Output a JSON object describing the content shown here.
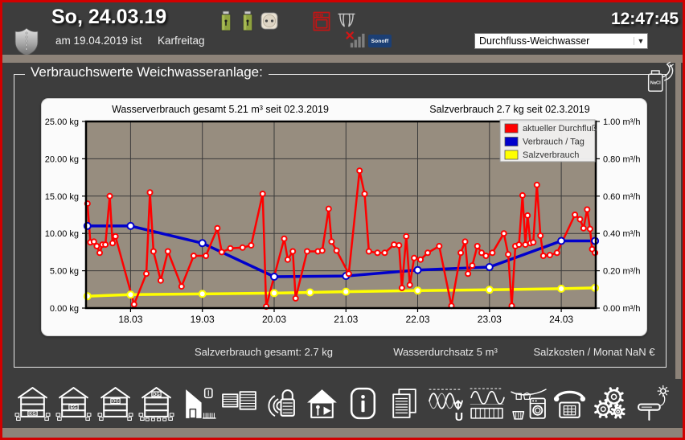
{
  "window": {
    "time": "12:47:45",
    "border_color": "#d10000",
    "panel_color": "#3d3d3d",
    "frame_color": "#8d8379"
  },
  "topbar": {
    "date": "So, 24.03.19",
    "holiday_prefix": "am 19.04.2019 ist",
    "holiday_name": "Karfreitag",
    "dropdown_value": "Durchfluss-Weichwasser",
    "sonoff_label": "Sonoff",
    "status_icons": [
      "shield-icon",
      "battery-icon",
      "battery-icon",
      "power-socket-icon",
      "oven-alarm-icon",
      "curtain-icon",
      "no-signal-icon",
      "sonoff-badge"
    ]
  },
  "groupbox": {
    "title": "Verbrauchswerte Weichwasseranlage:"
  },
  "chart_data": {
    "type": "line",
    "title_left": "Wasserverbrauch gesamt 5.21 m³  seit 02.3.2019",
    "title_right": "Salzverbrauch 2.7 kg  seit 02.3.2019",
    "plot_bg": "#978d7f",
    "grid": true,
    "legend_position": "top-right",
    "xlim": [
      17.38,
      24.48
    ],
    "x_ticks": [
      {
        "day": 18,
        "label": "18.03"
      },
      {
        "day": 19,
        "label": "19.03"
      },
      {
        "day": 20,
        "label": "20.03"
      },
      {
        "day": 21,
        "label": "21.03"
      },
      {
        "day": 22,
        "label": "22.03"
      },
      {
        "day": 23,
        "label": "23.03"
      },
      {
        "day": 24,
        "label": "24.03"
      }
    ],
    "left_axis": {
      "unit": "kg",
      "lim": [
        0,
        25
      ],
      "ticks": [
        {
          "v": 25,
          "label": "25.00 kg"
        },
        {
          "v": 20,
          "label": "20.00 kg"
        },
        {
          "v": 15,
          "label": "15.00 kg"
        },
        {
          "v": 10,
          "label": "10.00 kg"
        },
        {
          "v": 5,
          "label": "5.00 kg"
        },
        {
          "v": 0,
          "label": "0.00 kg"
        }
      ]
    },
    "right_axis": {
      "unit": "m³/h",
      "lim": [
        0,
        1
      ],
      "ticks": [
        {
          "v": 25,
          "label": "1.00 m³/h"
        },
        {
          "v": 20,
          "label": "0.80 m³/h"
        },
        {
          "v": 15,
          "label": "0.60 m³/h"
        },
        {
          "v": 10,
          "label": "0.40 m³/h"
        },
        {
          "v": 5,
          "label": "0.20 m³/h"
        },
        {
          "v": 0,
          "label": "0.00 m³/h"
        }
      ]
    },
    "series": [
      {
        "name": "Salzverbrauch",
        "color": "#ffff00",
        "width": 3.5,
        "marker": 4,
        "points": [
          [
            17.4,
            1.6
          ],
          [
            18.0,
            1.8
          ],
          [
            19.0,
            1.9
          ],
          [
            20.0,
            2.0
          ],
          [
            20.5,
            2.1
          ],
          [
            21.0,
            2.2
          ],
          [
            22.0,
            2.35
          ],
          [
            23.0,
            2.45
          ],
          [
            24.0,
            2.6
          ],
          [
            24.47,
            2.7
          ]
        ]
      },
      {
        "name": "Verbrauch / Tag",
        "color": "#0000cc",
        "width": 3.5,
        "marker": 4,
        "points": [
          [
            17.4,
            11.0
          ],
          [
            18.0,
            11.0
          ],
          [
            19.0,
            8.7
          ],
          [
            20.0,
            4.2
          ],
          [
            21.0,
            4.3
          ],
          [
            22.0,
            5.1
          ],
          [
            23.0,
            5.5
          ],
          [
            24.0,
            9.0
          ],
          [
            24.47,
            9.0
          ]
        ]
      },
      {
        "name": "aktueller Durchfluß",
        "color": "#ff0000",
        "width": 2.5,
        "marker": 3,
        "points": [
          [
            17.4,
            14.0
          ],
          [
            17.44,
            8.8
          ],
          [
            17.49,
            8.9
          ],
          [
            17.53,
            8.3
          ],
          [
            17.57,
            7.4
          ],
          [
            17.61,
            8.5
          ],
          [
            17.65,
            8.5
          ],
          [
            17.71,
            15.0
          ],
          [
            17.75,
            8.7
          ],
          [
            17.79,
            9.6
          ],
          [
            18.05,
            0.5
          ],
          [
            18.22,
            4.6
          ],
          [
            18.27,
            15.5
          ],
          [
            18.32,
            7.6
          ],
          [
            18.42,
            3.7
          ],
          [
            18.52,
            7.6
          ],
          [
            18.71,
            2.9
          ],
          [
            18.88,
            7.0
          ],
          [
            19.05,
            7.0
          ],
          [
            19.21,
            10.7
          ],
          [
            19.27,
            7.5
          ],
          [
            19.39,
            8.0
          ],
          [
            19.56,
            8.1
          ],
          [
            19.68,
            8.4
          ],
          [
            19.84,
            15.3
          ],
          [
            19.89,
            0.2
          ],
          [
            20.14,
            9.3
          ],
          [
            20.19,
            6.5
          ],
          [
            20.26,
            7.6
          ],
          [
            20.3,
            1.3
          ],
          [
            20.46,
            7.6
          ],
          [
            20.61,
            7.6
          ],
          [
            20.67,
            7.7
          ],
          [
            20.76,
            13.3
          ],
          [
            20.8,
            8.9
          ],
          [
            20.87,
            7.7
          ],
          [
            21.04,
            4.6
          ],
          [
            21.19,
            18.4
          ],
          [
            21.26,
            15.3
          ],
          [
            21.32,
            7.6
          ],
          [
            21.44,
            7.4
          ],
          [
            21.54,
            7.4
          ],
          [
            21.67,
            8.5
          ],
          [
            21.74,
            8.4
          ],
          [
            21.78,
            2.7
          ],
          [
            21.84,
            9.6
          ],
          [
            21.89,
            3.1
          ],
          [
            21.95,
            6.7
          ],
          [
            22.04,
            6.5
          ],
          [
            22.14,
            7.4
          ],
          [
            22.3,
            8.3
          ],
          [
            22.47,
            0.3
          ],
          [
            22.6,
            7.4
          ],
          [
            22.66,
            8.9
          ],
          [
            22.7,
            4.6
          ],
          [
            22.76,
            5.7
          ],
          [
            22.83,
            8.3
          ],
          [
            22.89,
            7.4
          ],
          [
            22.95,
            7.0
          ],
          [
            23.04,
            7.4
          ],
          [
            23.2,
            10.0
          ],
          [
            23.26,
            7.2
          ],
          [
            23.31,
            0.3
          ],
          [
            23.36,
            8.3
          ],
          [
            23.41,
            8.5
          ],
          [
            23.46,
            15.1
          ],
          [
            23.5,
            8.5
          ],
          [
            23.53,
            12.4
          ],
          [
            23.57,
            8.7
          ],
          [
            23.61,
            8.8
          ],
          [
            23.66,
            16.5
          ],
          [
            23.71,
            9.7
          ],
          [
            23.75,
            7.0
          ],
          [
            23.84,
            7.1
          ],
          [
            23.94,
            7.4
          ],
          [
            24.19,
            12.5
          ],
          [
            24.26,
            11.9
          ],
          [
            24.31,
            10.7
          ],
          [
            24.36,
            13.2
          ],
          [
            24.4,
            10.6
          ],
          [
            24.43,
            7.9
          ],
          [
            24.47,
            7.4
          ]
        ]
      }
    ],
    "legend": [
      "aktueller Durchfluß",
      "Verbrauch / Tag",
      "Salzverbrauch"
    ]
  },
  "summary": {
    "salt_total": "Salzverbrauch gesamt: 2.7 kg",
    "water_throughput": "Wasserdurchsatz 5 m³",
    "salt_cost": "Salzkosten / Monat NaN €"
  },
  "nacl_icon_label": "NaCl",
  "toolbar": {
    "items": [
      {
        "name": "floor-kg",
        "label": "KG"
      },
      {
        "name": "floor-eg",
        "label": "EG"
      },
      {
        "name": "floor-og",
        "label": "OG"
      },
      {
        "name": "floor-dg",
        "label": "DG"
      },
      {
        "name": "outdoor-area",
        "label": ""
      },
      {
        "name": "blinds",
        "label": ""
      },
      {
        "name": "radio-lock",
        "label": ""
      },
      {
        "name": "presence-simulation",
        "label": ""
      },
      {
        "name": "info",
        "label": ""
      },
      {
        "name": "log-pages",
        "label": ""
      },
      {
        "name": "voltage-curves",
        "label": "U"
      },
      {
        "name": "energy-meter",
        "label": ""
      },
      {
        "name": "laundry",
        "label": ""
      },
      {
        "name": "phone",
        "label": ""
      },
      {
        "name": "settings-gears",
        "label": ""
      },
      {
        "name": "weather-device",
        "label": ""
      }
    ]
  }
}
